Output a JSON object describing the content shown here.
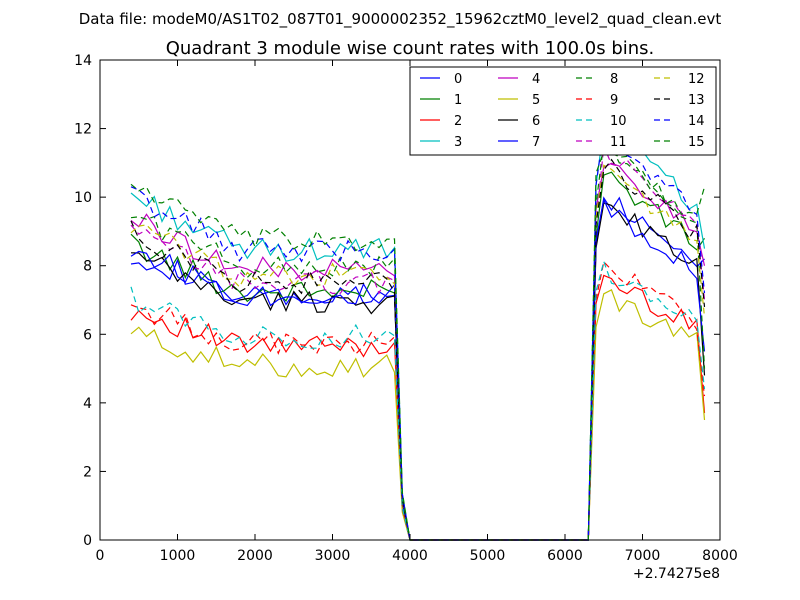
{
  "figure": {
    "suptitle": "Data file: modeM0/AS1T02_087T01_9000002352_15962cztM0_level2_quad_clean.evt",
    "offset_label": "+2.74275e8"
  },
  "chart_data": {
    "type": "line",
    "title": "Quadrant 3 module wise count rates with 100.0s bins.",
    "xlabel": "",
    "ylabel": "",
    "xlim": [
      0,
      8000
    ],
    "ylim": [
      0,
      14
    ],
    "x_offset": 274275000,
    "xticks": [
      0,
      1000,
      2000,
      3000,
      4000,
      5000,
      6000,
      7000,
      8000
    ],
    "yticks": [
      0,
      2,
      4,
      6,
      8,
      10,
      12,
      14
    ],
    "grid": false,
    "legend": {
      "placement": "top-right",
      "columns": 4
    },
    "x_segments": [
      {
        "start": 400,
        "end": 3900,
        "step": 100
      },
      {
        "start": 4000,
        "end": 6300,
        "step": 100
      },
      {
        "start": 6400,
        "end": 7800,
        "step": 100
      }
    ],
    "series": [
      {
        "name": "0",
        "color": "#0000ff",
        "dash": "solid",
        "level1": 7.5,
        "level2": 9.6,
        "tail": 8.2
      },
      {
        "name": "1",
        "color": "#008000",
        "dash": "solid",
        "level1": 7.7,
        "level2": 10.2,
        "tail": 8.8
      },
      {
        "name": "2",
        "color": "#ff0000",
        "dash": "solid",
        "level1": 6.0,
        "level2": 7.3,
        "tail": 3.7
      },
      {
        "name": "3",
        "color": "#00bfbf",
        "dash": "solid",
        "level1": 9.0,
        "level2": 11.5,
        "tail": 8.5
      },
      {
        "name": "4",
        "color": "#bf00bf",
        "dash": "solid",
        "level1": 8.4,
        "level2": 10.6,
        "tail": 8.0
      },
      {
        "name": "5",
        "color": "#bfbf00",
        "dash": "solid",
        "level1": 5.4,
        "level2": 6.8,
        "tail": 3.5
      },
      {
        "name": "6",
        "color": "#000000",
        "dash": "solid",
        "level1": 7.4,
        "level2": 9.4,
        "tail": 4.8
      },
      {
        "name": "7",
        "color": "#0000ff",
        "dash": "solid",
        "level1": 7.6,
        "level2": 9.3,
        "tail": 5.5
      },
      {
        "name": "8",
        "color": "#008000",
        "dash": "dashed",
        "level1": 8.5,
        "level2": 10.9,
        "tail": 5.0
      },
      {
        "name": "9",
        "color": "#ff0000",
        "dash": "dashed",
        "level1": 6.1,
        "level2": 7.6,
        "tail": 4.2
      },
      {
        "name": "10",
        "color": "#00bfbf",
        "dash": "dashed",
        "level1": 6.3,
        "level2": 7.5,
        "tail": 4.4
      },
      {
        "name": "11",
        "color": "#bf00bf",
        "dash": "dashed",
        "level1": 8.0,
        "level2": 10.8,
        "tail": 7.0
      },
      {
        "name": "12",
        "color": "#bfbf00",
        "dash": "dashed",
        "level1": 8.2,
        "level2": 10.3,
        "tail": 6.5
      },
      {
        "name": "13",
        "color": "#000000",
        "dash": "dashed",
        "level1": 8.0,
        "level2": 10.5,
        "tail": 6.8
      },
      {
        "name": "14",
        "color": "#0000ff",
        "dash": "dashed",
        "level1": 9.0,
        "level2": 11.2,
        "tail": 7.2
      },
      {
        "name": "15",
        "color": "#008000",
        "dash": "dashed",
        "level1": 9.3,
        "level2": 11.0,
        "tail": 10.3
      }
    ]
  }
}
